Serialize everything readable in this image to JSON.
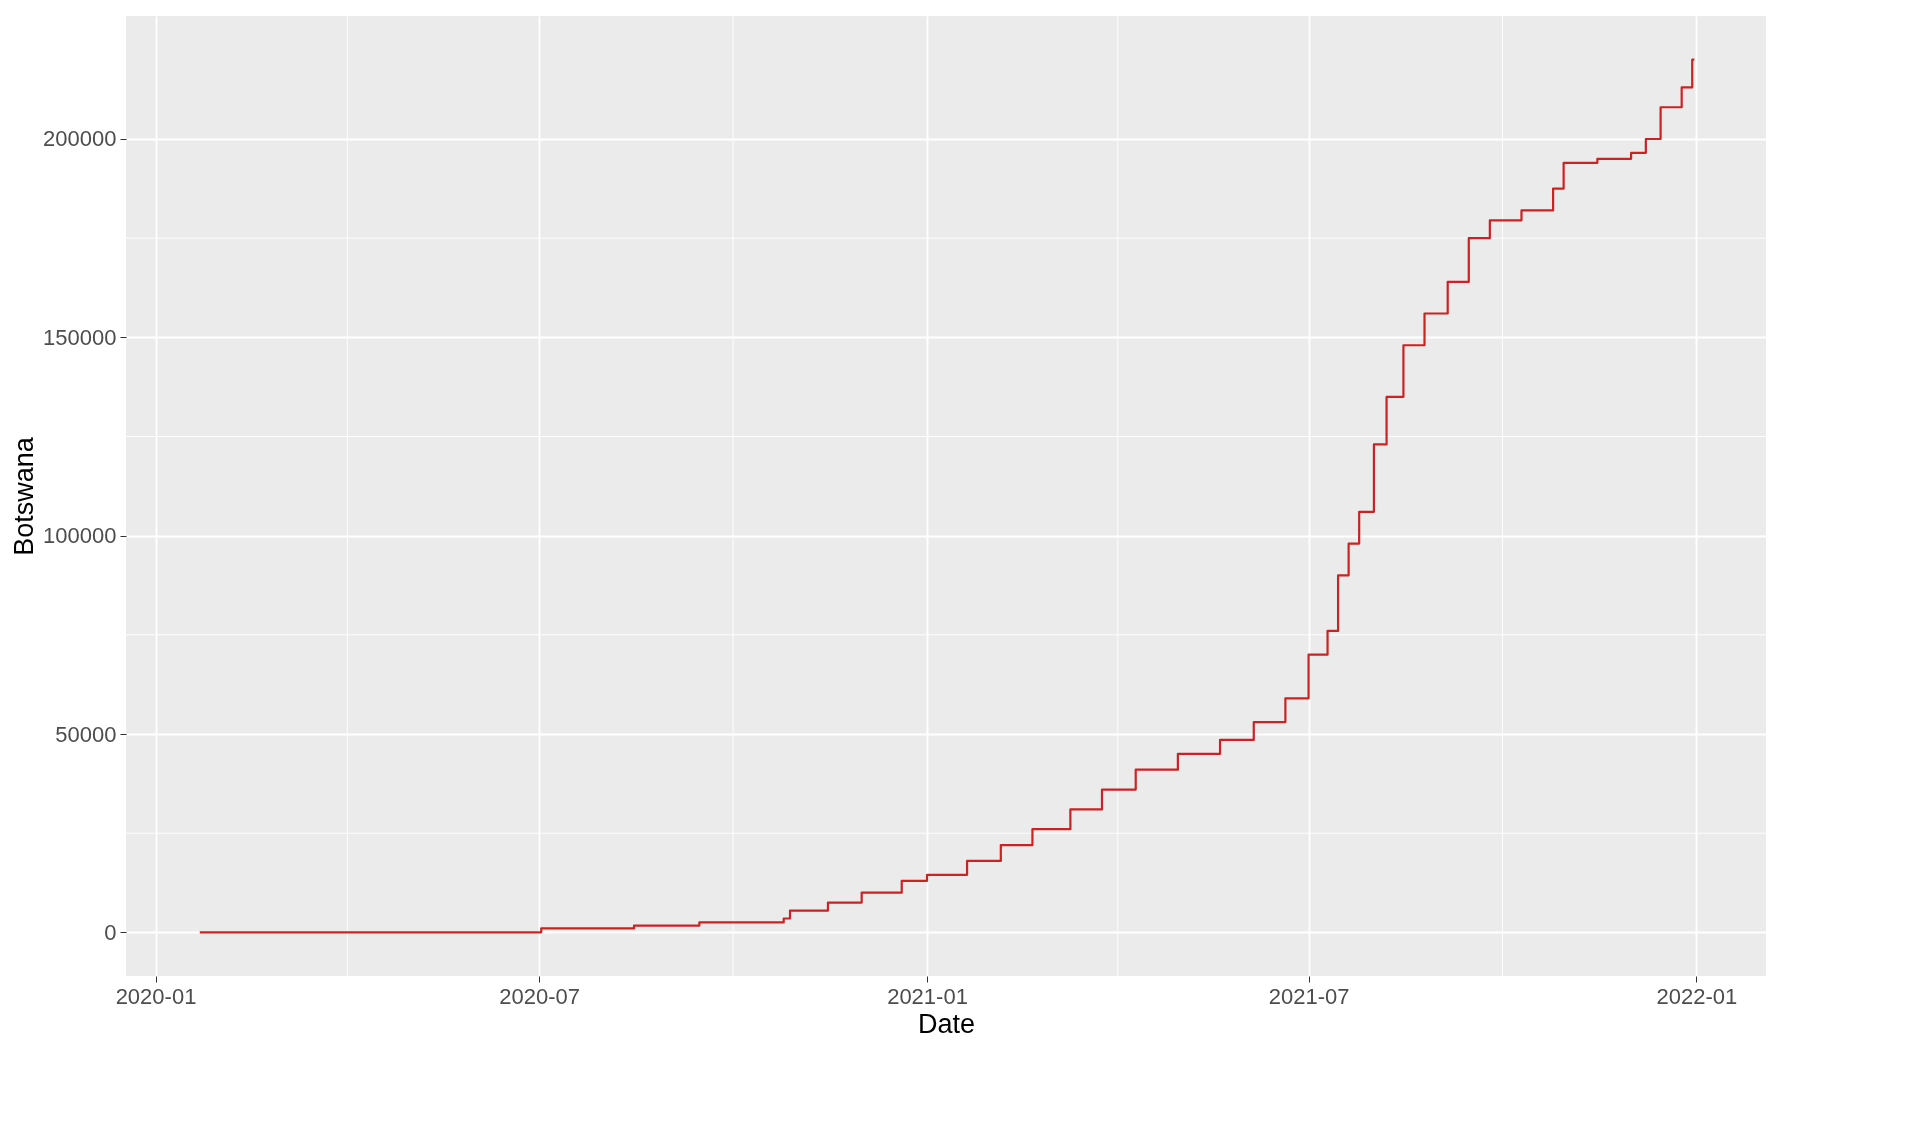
{
  "chart_data": {
    "type": "step",
    "xlabel": "Date",
    "ylabel": "Botswana",
    "x": [
      "2020-01-22",
      "2020-06-28",
      "2020-07-02",
      "2020-08-15",
      "2020-09-15",
      "2020-10-25",
      "2020-10-28",
      "2020-11-15",
      "2020-12-01",
      "2020-12-20",
      "2021-01-01",
      "2021-01-20",
      "2021-02-05",
      "2021-02-20",
      "2021-03-10",
      "2021-03-25",
      "2021-04-10",
      "2021-04-30",
      "2021-05-20",
      "2021-06-05",
      "2021-06-20",
      "2021-07-01",
      "2021-07-10",
      "2021-07-15",
      "2021-07-20",
      "2021-07-25",
      "2021-08-01",
      "2021-08-07",
      "2021-08-15",
      "2021-08-25",
      "2021-09-05",
      "2021-09-15",
      "2021-09-25",
      "2021-10-10",
      "2021-10-25",
      "2021-10-30",
      "2021-11-15",
      "2021-12-01",
      "2021-12-08",
      "2021-12-15",
      "2021-12-25",
      "2021-12-30",
      "2021-12-31"
    ],
    "series": [
      {
        "color": "#cc2222",
        "values": [
          0,
          0,
          1000,
          1700,
          2500,
          3500,
          5500,
          7500,
          10000,
          13000,
          14500,
          18000,
          22000,
          26000,
          31000,
          36000,
          41000,
          45000,
          48500,
          53000,
          59000,
          70000,
          76000,
          90000,
          98000,
          106000,
          123000,
          135000,
          148000,
          156000,
          164000,
          175000,
          179500,
          182000,
          187500,
          194000,
          195000,
          196500,
          200000,
          208000,
          213000,
          220000,
          220000
        ]
      }
    ],
    "xlim": [
      "2019-12-18",
      "2022-02-03"
    ],
    "xticks": [
      "2020-01",
      "2020-07",
      "2021-01",
      "2021-07",
      "2022-01"
    ],
    "ylim": [
      -11000,
      231000
    ],
    "yticks": [
      0,
      50000,
      100000,
      150000,
      200000
    ],
    "grid": true,
    "line_style": "solid"
  }
}
